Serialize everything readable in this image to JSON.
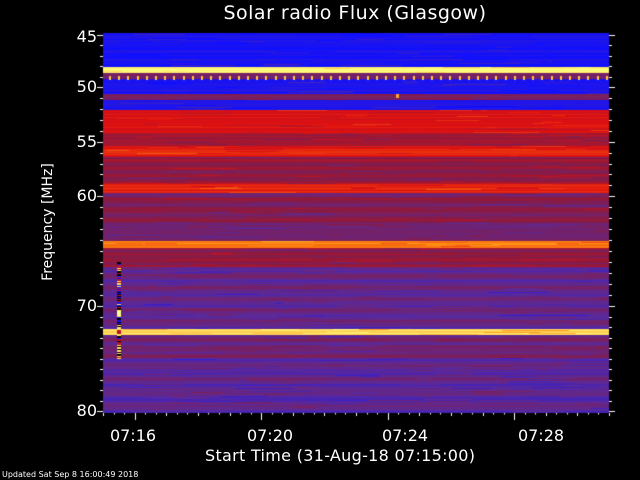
{
  "chart_data": {
    "type": "heatmap",
    "title": "Solar radio Flux (Glasgow)",
    "xlabel": "Start Time (31-Aug-18 07:15:00)",
    "ylabel": "Frequency [MHz]",
    "x_unit": "time (HH:MM)",
    "xlim": [
      "07:15:00",
      "07:31:00"
    ],
    "ylim": [
      45,
      80
    ],
    "x_ticks": [
      "07:16",
      "07:20",
      "07:24",
      "07:28"
    ],
    "y_ticks": [
      "45",
      "50",
      "55",
      "60",
      "70",
      "80"
    ],
    "colormap": [
      "#1010ff",
      "#5a2a9a",
      "#8a1a40",
      "#e01010",
      "#ff8a10",
      "#ffff80"
    ],
    "bands": [
      {
        "f_start": 45.0,
        "f_end": 48.0,
        "level": "low (blue)"
      },
      {
        "f_start": 48.2,
        "f_end": 48.6,
        "level": "high (yellow)"
      },
      {
        "f_start": 49.0,
        "f_end": 52.0,
        "level": "low (blue)"
      },
      {
        "f_start": 52.3,
        "f_end": 54.0,
        "level": "medium-high (red)"
      },
      {
        "f_start": 55.5,
        "f_end": 56.3,
        "level": "medium-high (red)"
      },
      {
        "f_start": 59.0,
        "f_end": 59.6,
        "level": "medium-high (red)"
      },
      {
        "f_start": 64.2,
        "f_end": 64.6,
        "level": "high (orange)"
      },
      {
        "f_start": 72.3,
        "f_end": 72.7,
        "level": "high (yellow)"
      }
    ],
    "features": [
      {
        "type": "burst",
        "time": "07:15:30",
        "f_start": 66,
        "f_end": 75,
        "level": "varying"
      },
      {
        "type": "spot",
        "time": "07:24:15",
        "freq": 50.8,
        "level": "high"
      }
    ],
    "footer": "Updated Sat Sep  8 16:00:49 2018"
  }
}
